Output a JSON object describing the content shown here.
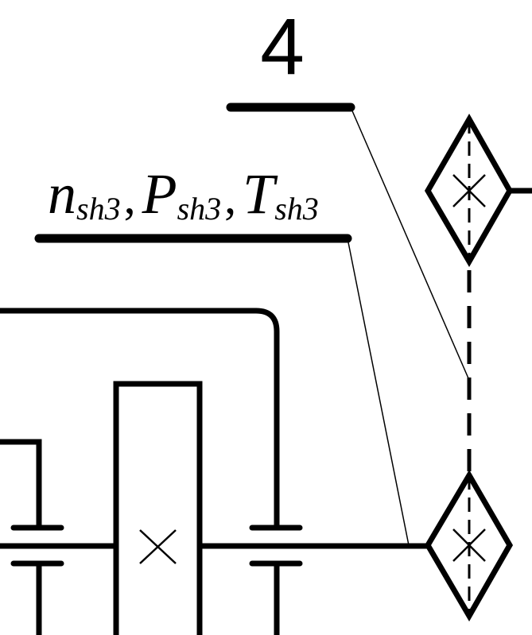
{
  "diagram": {
    "shaft_number": "4",
    "shaft_params": {
      "n": "n",
      "n_sub": "sh3",
      "P": "P",
      "P_sub": "sh3",
      "T": "T",
      "T_sub": "sh3",
      "separator": ","
    },
    "colors": {
      "line": "#000000",
      "background": "#ffffff"
    }
  }
}
